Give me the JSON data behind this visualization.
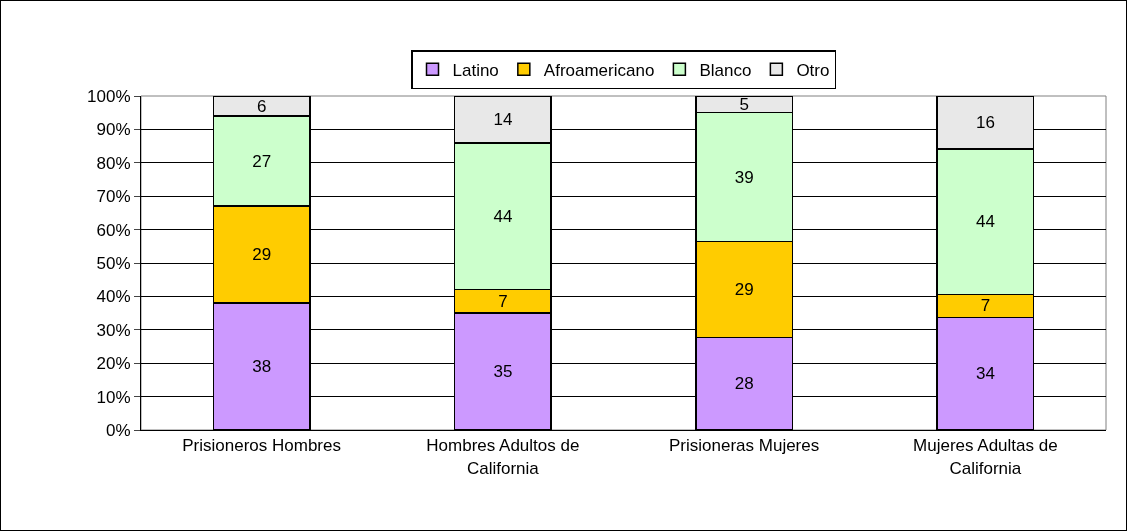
{
  "chart_data": {
    "type": "bar",
    "stacked": true,
    "categories": [
      "Prisioneros Hombres",
      "Hombres Adultos de California",
      "Prisioneras Mujeres",
      "Mujeres Adultas de California"
    ],
    "series": [
      {
        "name": "Latino",
        "color": "#cc99ff",
        "values": [
          38,
          35,
          27.7,
          33.7
        ],
        "value_labels": [
          "38",
          "35",
          "28",
          "34"
        ]
      },
      {
        "name": "Afroamericano",
        "color": "#ffcc00",
        "values": [
          29,
          7,
          28.7,
          6.9
        ],
        "value_labels": [
          "29",
          "7",
          "29",
          "7"
        ]
      },
      {
        "name": "Blanco",
        "color": "#ccffcc",
        "values": [
          27,
          44,
          38.6,
          43.6
        ],
        "value_labels": [
          "27",
          "44",
          "39",
          "44"
        ]
      },
      {
        "name": "Otro",
        "color": "#e8e8e8",
        "values": [
          6,
          14,
          5,
          15.8
        ],
        "value_labels": [
          "6",
          "14",
          "5",
          "16"
        ]
      }
    ],
    "ylim": [
      0,
      100
    ],
    "yticks": [
      {
        "value": 0,
        "label": "0%"
      },
      {
        "value": 10,
        "label": "10%"
      },
      {
        "value": 20,
        "label": "20%"
      },
      {
        "value": 30,
        "label": "30%"
      },
      {
        "value": 40,
        "label": "40%"
      },
      {
        "value": 50,
        "label": "50%"
      },
      {
        "value": 60,
        "label": "60%"
      },
      {
        "value": 70,
        "label": "70%"
      },
      {
        "value": 80,
        "label": "80%"
      },
      {
        "value": 90,
        "label": "90%"
      },
      {
        "value": 100,
        "label": "100%"
      }
    ],
    "grid": "y",
    "legend": "top"
  }
}
